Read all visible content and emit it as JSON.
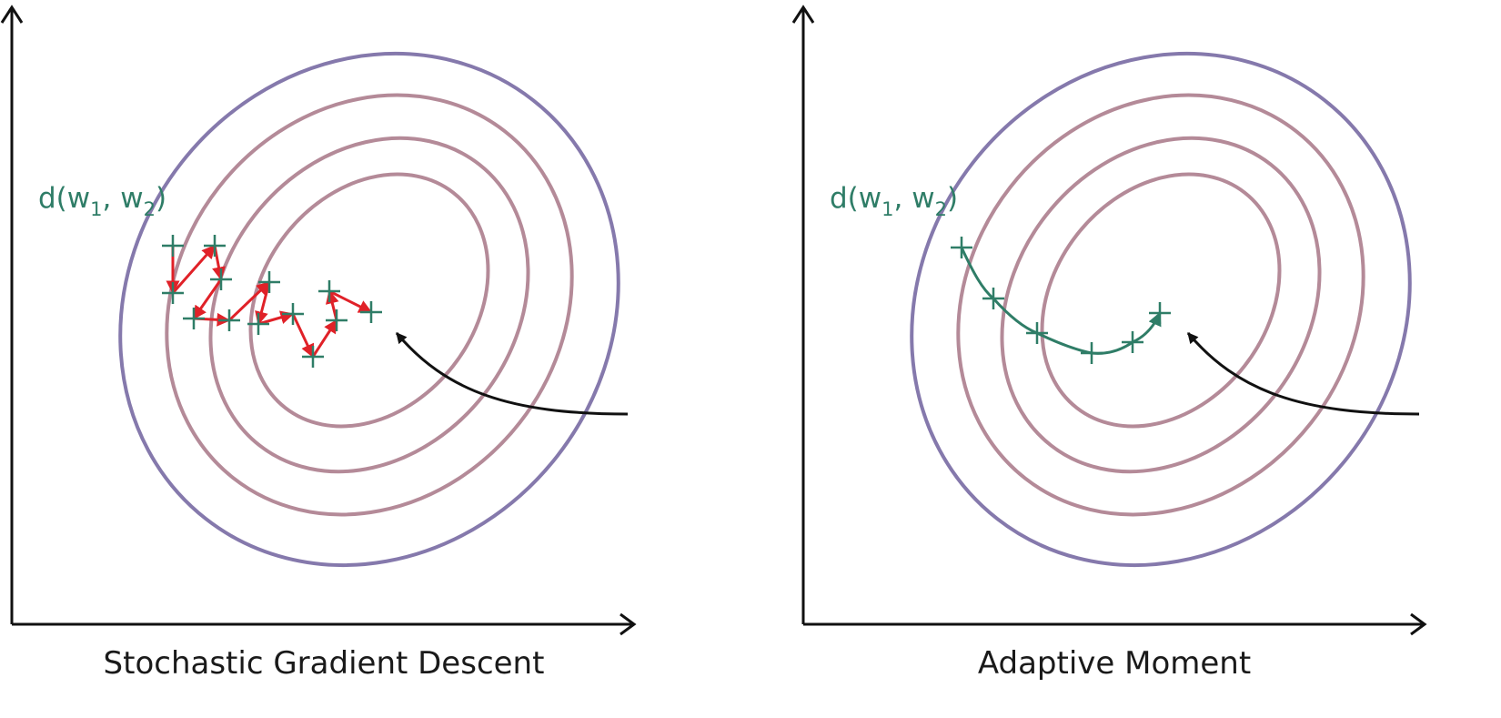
{
  "colors": {
    "axis": "#111111",
    "contour_outer": "#8579ac",
    "contour_inner": "#b48a98",
    "sgd_path": "#e02128",
    "marker": "#2f7d67",
    "label": "#2f7d67",
    "adam_path": "#2f7d67",
    "pointer_arrow": "#111111"
  },
  "panels": [
    {
      "caption": "Stochastic Gradient Descent",
      "point_label": {
        "prefix": "d(w",
        "sub1": "1",
        "middle": ", w",
        "sub2": "2",
        "suffix": ")"
      },
      "path_style": "zigzag"
    },
    {
      "caption": "Adaptive Moment",
      "point_label": {
        "prefix": "d(w",
        "sub1": "1",
        "middle": ", w",
        "sub2": "2",
        "suffix": ")"
      },
      "path_style": "smooth"
    }
  ]
}
